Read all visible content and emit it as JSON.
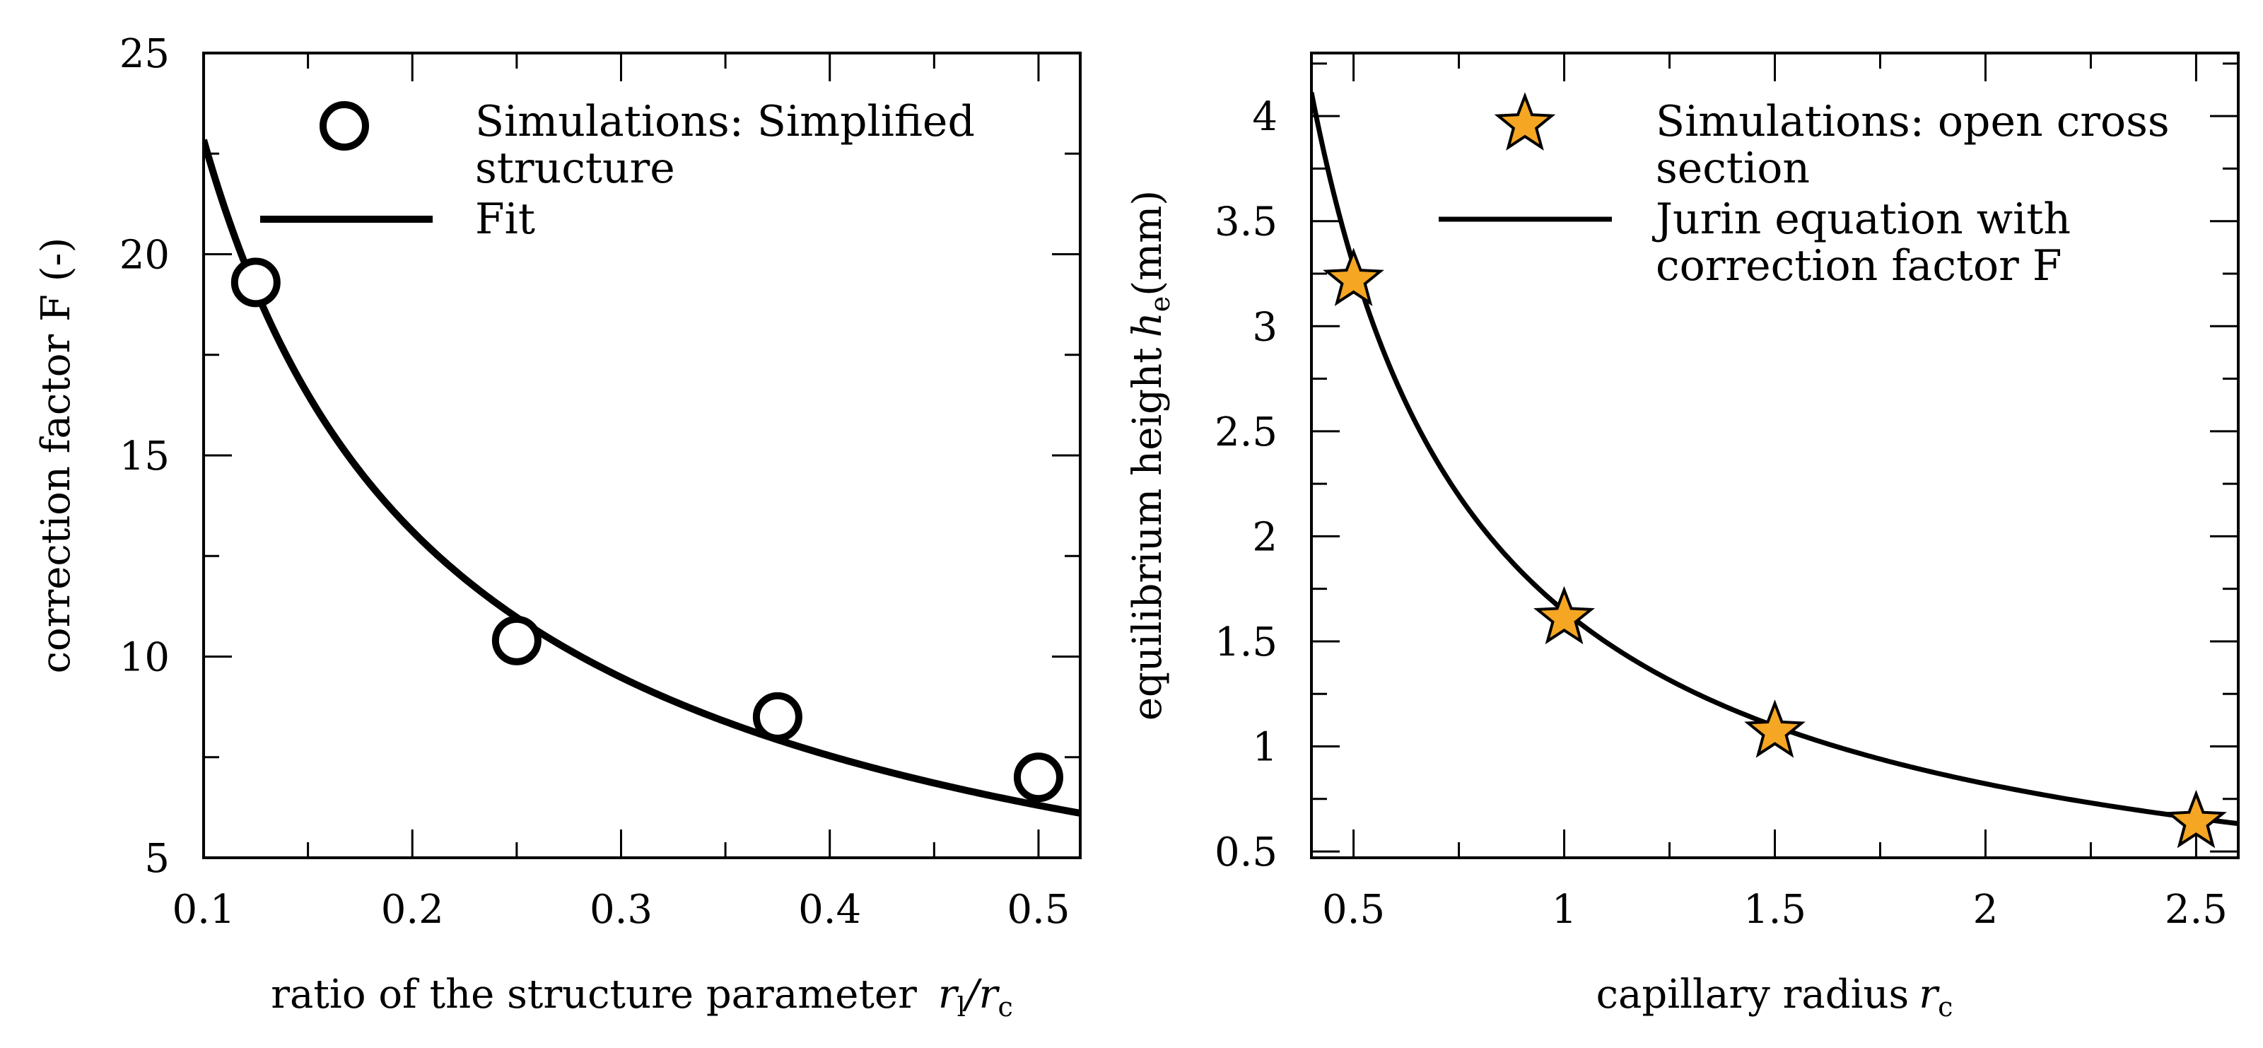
{
  "chart_data": [
    {
      "type": "scatter",
      "xlabel_main": "ratio of the structure parameter",
      "xlabel_sym": "r",
      "xlabel_sub1": "l",
      "xlabel_slash": "/r",
      "xlabel_sub2": "c",
      "ylabel": "correction factor F (-)",
      "xlim": [
        0.1,
        0.52
      ],
      "ylim": [
        5,
        25
      ],
      "xticks": [
        0.1,
        0.2,
        0.3,
        0.4,
        0.5
      ],
      "xtick_labels": [
        "0.1",
        "0.2",
        "0.3",
        "0.4",
        "0.5"
      ],
      "yticks": [
        5,
        10,
        15,
        20,
        25
      ],
      "ytick_labels": [
        "5",
        "10",
        "15",
        "20",
        "25"
      ],
      "series": [
        {
          "name": "Simulations: Simplified structure",
          "legend_lines": [
            "Simulations: Simplified",
            "structure"
          ],
          "kind": "markers",
          "marker": "circle",
          "x": [
            0.125,
            0.25,
            0.375,
            0.5
          ],
          "y": [
            19.3,
            10.4,
            8.5,
            7.0
          ]
        },
        {
          "name": "Fit",
          "legend_lines": [
            "Fit"
          ],
          "kind": "line",
          "model": "y = a * x^b",
          "a": 3.62,
          "b": -0.8
        }
      ],
      "legend_position": "top-right"
    },
    {
      "type": "scatter",
      "xlabel_main": "capillary radius",
      "xlabel_sym": "r",
      "xlabel_sub": "c",
      "ylabel_main": "equilibrium height",
      "ylabel_sym": "h",
      "ylabel_sub": "e",
      "ylabel_unit": "(mm)",
      "xlim": [
        0.4,
        2.6
      ],
      "ylim": [
        0.47,
        4.3
      ],
      "xticks": [
        0.5,
        1,
        1.5,
        2,
        2.5
      ],
      "xtick_labels": [
        "0.5",
        "1",
        "1.5",
        "2",
        "2.5"
      ],
      "yticks": [
        0.5,
        1,
        1.5,
        2,
        2.5,
        3,
        3.5,
        4
      ],
      "ytick_labels": [
        "0.5",
        "1",
        "1.5",
        "2",
        "2.5",
        "3",
        "3.5",
        "4"
      ],
      "series": [
        {
          "name": "Simulations: open cross section",
          "legend_lines": [
            "Simulations: open cross",
            "section"
          ],
          "kind": "markers",
          "marker": "star",
          "color": "#F5A623",
          "x": [
            0.5,
            1,
            1.5,
            2.5
          ],
          "y": [
            3.22,
            1.61,
            1.07,
            0.64
          ]
        },
        {
          "name": "Jurin equation with correction factor F",
          "legend_lines": [
            "Jurin equation with",
            "correction factor F"
          ],
          "kind": "line",
          "model": "y = a / x",
          "a": 1.645
        }
      ],
      "legend_position": "top-right"
    }
  ]
}
